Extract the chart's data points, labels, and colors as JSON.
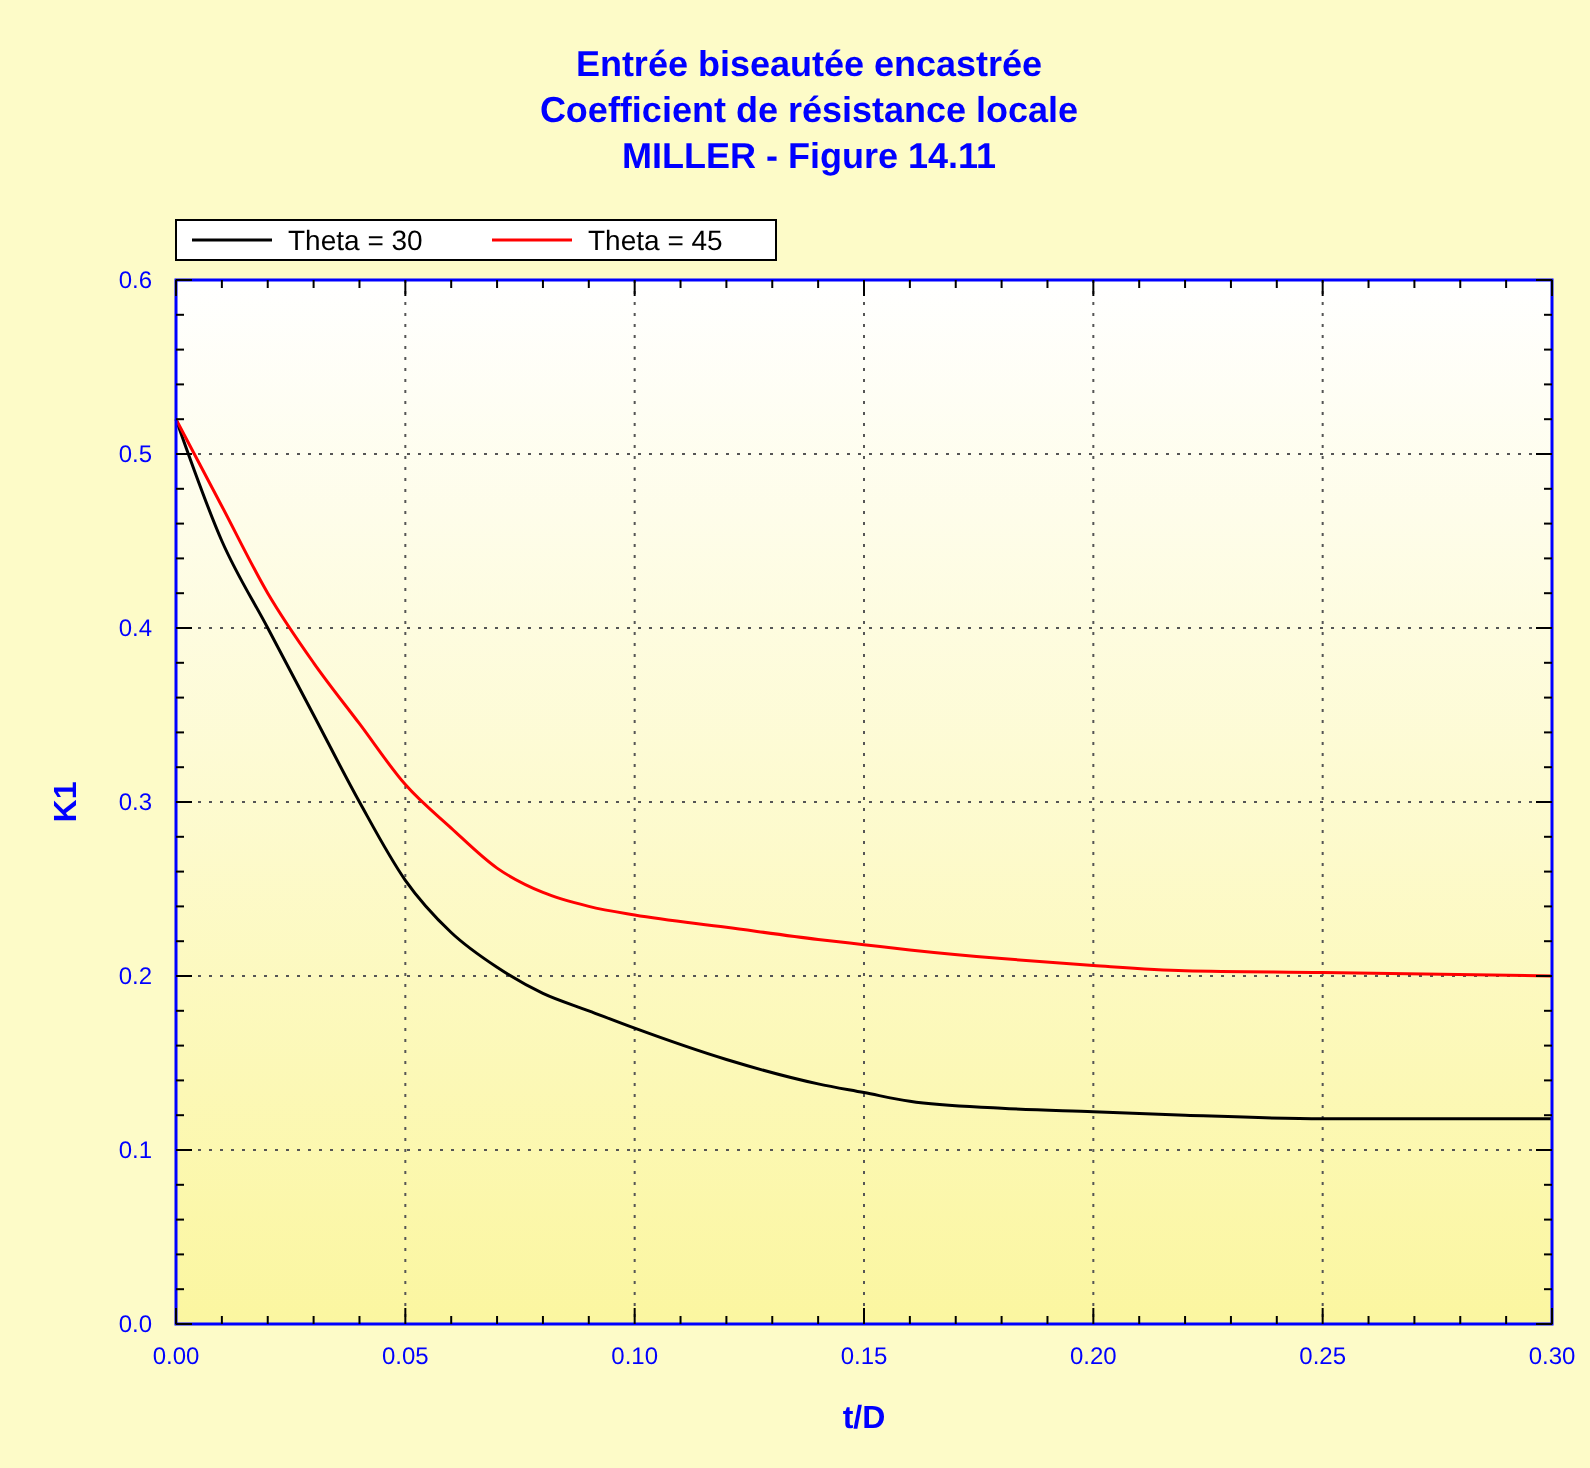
{
  "chart_data": {
    "type": "line",
    "title": "Entrée biseautée encastrée\nCoefficient de résistance locale\nMILLER - Figure 14.11",
    "xlabel": "t/D",
    "ylabel": "K1",
    "x": [
      0,
      0.01,
      0.02,
      0.03,
      0.04,
      0.05,
      0.06,
      0.07,
      0.08,
      0.09,
      0.1,
      0.12,
      0.14,
      0.15,
      0.16,
      0.18,
      0.2,
      0.22,
      0.25,
      0.3
    ],
    "series": [
      {
        "name": "Theta = 30",
        "color": "#000000",
        "values": [
          0.52,
          0.45,
          0.4,
          0.35,
          0.3,
          0.255,
          0.225,
          0.205,
          0.19,
          0.18,
          0.17,
          0.152,
          0.138,
          0.133,
          0.128,
          0.124,
          0.122,
          0.12,
          0.118,
          0.118
        ]
      },
      {
        "name": "Theta = 45",
        "color": "#ff0000",
        "values": [
          0.52,
          0.47,
          0.42,
          0.38,
          0.345,
          0.31,
          0.285,
          0.262,
          0.248,
          0.24,
          0.235,
          0.228,
          0.221,
          0.218,
          0.215,
          0.21,
          0.206,
          0.203,
          0.202,
          0.2
        ]
      }
    ],
    "xlim": [
      0,
      0.3
    ],
    "xticks": [
      {
        "value": 0,
        "label": "0.00"
      },
      {
        "value": 0.05,
        "label": "0.05"
      },
      {
        "value": 0.1,
        "label": "0.10"
      },
      {
        "value": 0.15,
        "label": "0.15"
      },
      {
        "value": 0.2,
        "label": "0.20"
      },
      {
        "value": 0.25,
        "label": "0.25"
      },
      {
        "value": 0.3,
        "label": "0.30"
      }
    ],
    "ylim": [
      0,
      0.6
    ],
    "yticks": [
      {
        "value": 0,
        "label": "0.0"
      },
      0.1,
      0.2,
      0.3,
      0.4,
      0.5,
      0.6
    ],
    "grid": true,
    "legend": "top left",
    "marker": "none",
    "line_style": "solid"
  }
}
